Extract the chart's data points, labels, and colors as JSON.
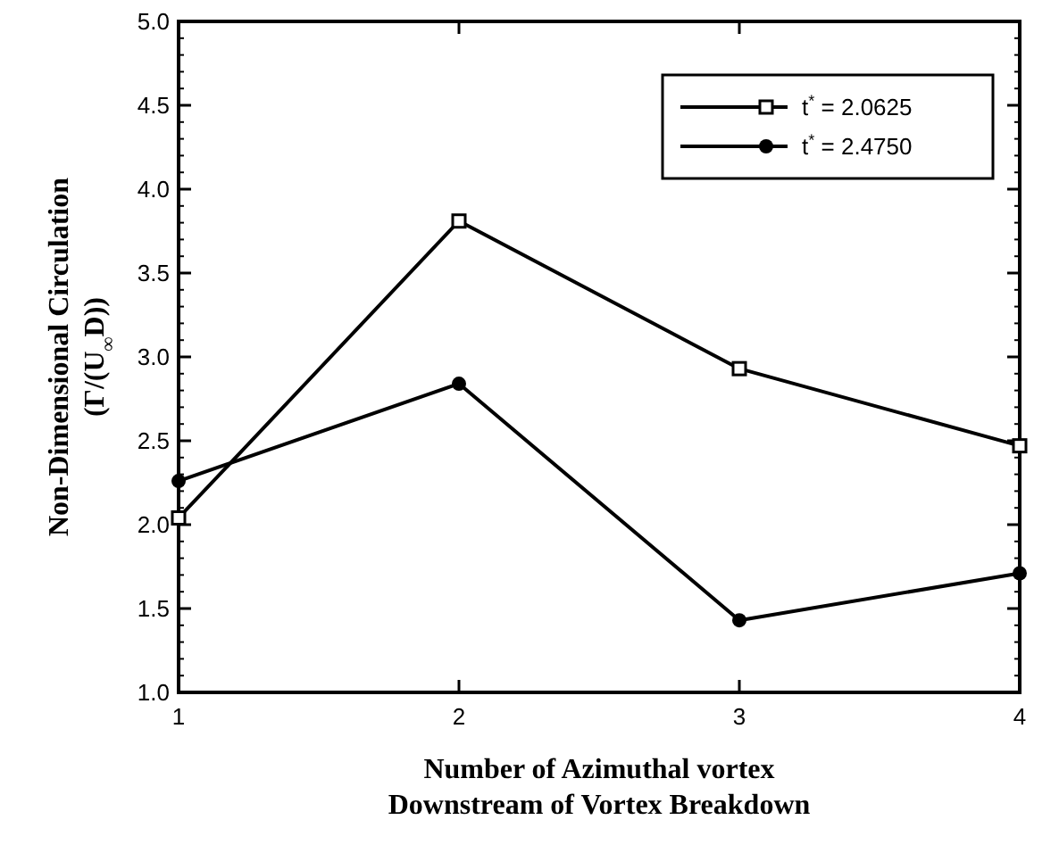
{
  "chart_data": {
    "type": "line",
    "xlabel": "Number of Azimuthal vortex\nDownstream of Vortex Breakdown",
    "ylabel": "Non-Dimensional Circulation\n(Γ/(U$_{∞}$D))",
    "x": [
      1,
      2,
      3,
      4
    ],
    "xlim": [
      1,
      4
    ],
    "xticks": [
      1,
      2,
      3,
      4
    ],
    "ylim": [
      1,
      5
    ],
    "yticks": [
      {
        "value": 1,
        "label": "1.0"
      },
      {
        "value": 1.5,
        "label": "1.5"
      },
      {
        "value": 2,
        "label": "2.0"
      },
      {
        "value": 2.5,
        "label": "2.5"
      },
      {
        "value": 3,
        "label": "3.0"
      },
      {
        "value": 3.5,
        "label": "3.5"
      },
      {
        "value": 4,
        "label": "4.0"
      },
      {
        "value": 4.5,
        "label": "4.5"
      },
      {
        "value": 5,
        "label": "5.0"
      }
    ],
    "series": [
      {
        "name": "t$^{*}$ = 2.0625",
        "color": "#000000",
        "marker": "square",
        "values": [
          2.04,
          3.81,
          2.93,
          2.47
        ]
      },
      {
        "name": "t$^{*}$ = 2.4750",
        "color": "#000000",
        "marker": "circle",
        "values": [
          2.26,
          2.84,
          1.43,
          1.71
        ]
      }
    ],
    "legend": "top right",
    "grid": false,
    "line_style": "solid"
  }
}
